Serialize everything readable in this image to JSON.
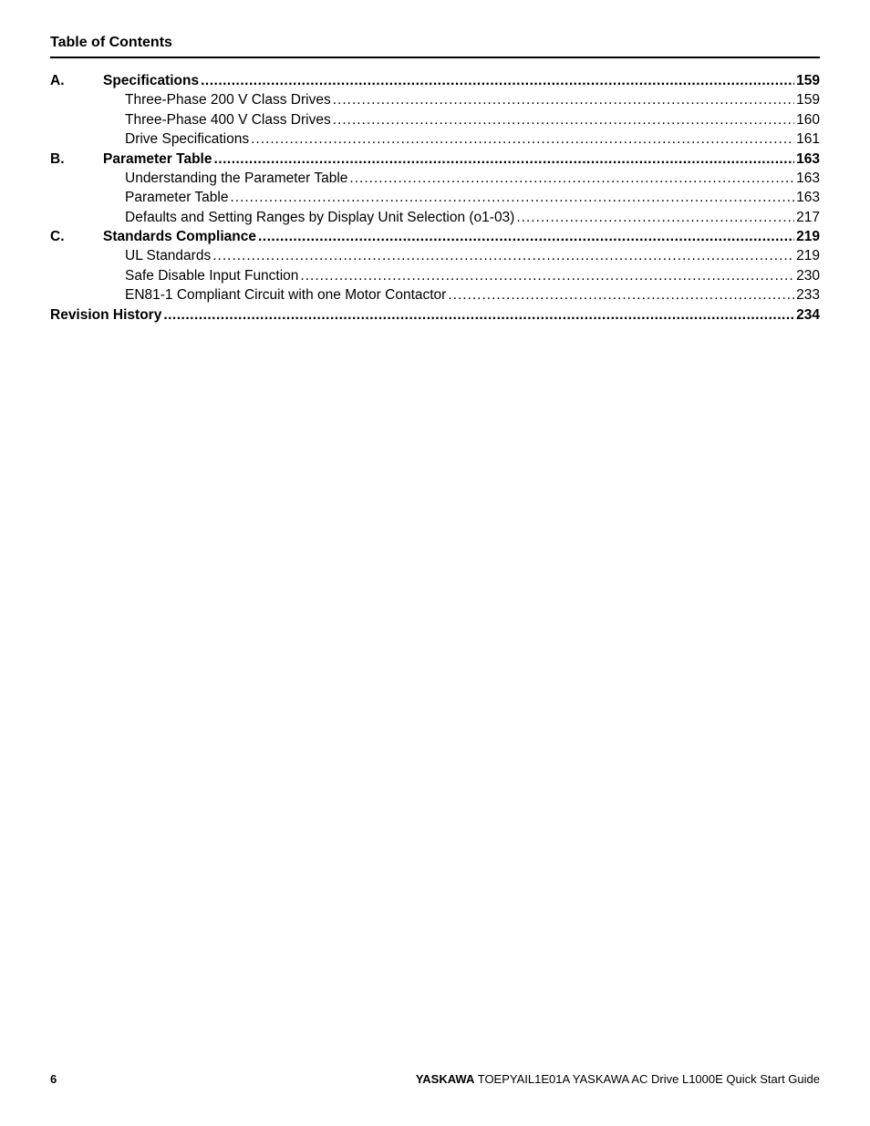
{
  "colors": {
    "text": "#000000",
    "background": "#ffffff",
    "rule": "#000000"
  },
  "typography": {
    "base_family": "Arial, Helvetica, sans-serif",
    "header_size_pt": 12,
    "body_size_pt": 11.5,
    "footer_size_pt": 9.5
  },
  "header": {
    "title": "Table of Contents"
  },
  "toc": {
    "sections": [
      {
        "letter": "A.",
        "title": "Specifications",
        "page": "159",
        "items": [
          {
            "label": "Three-Phase 200 V Class Drives",
            "page": "159"
          },
          {
            "label": "Three-Phase 400 V Class Drives",
            "page": "160"
          },
          {
            "label": "Drive Specifications",
            "page": "161"
          }
        ]
      },
      {
        "letter": "B.",
        "title": "Parameter Table",
        "page": "163",
        "items": [
          {
            "label": "Understanding the Parameter Table",
            "page": "163"
          },
          {
            "label": "Parameter Table",
            "page": "163"
          },
          {
            "label": "Defaults and Setting Ranges by Display Unit Selection (o1-03)",
            "page": "217"
          }
        ]
      },
      {
        "letter": "C.",
        "title": "Standards Compliance",
        "page": "219",
        "items": [
          {
            "label": "UL Standards",
            "page": "219"
          },
          {
            "label": "Safe Disable Input Function",
            "page": "230"
          },
          {
            "label": "EN81-1 Compliant Circuit with one Motor Contactor",
            "page": "233"
          }
        ]
      }
    ],
    "tail": {
      "title": "Revision History",
      "page": "234"
    }
  },
  "footer": {
    "pagenum": "6",
    "brand": "YASKAWA",
    "text": " TOEPYAIL1E01A YASKAWA AC Drive L1000E Quick Start Guide"
  }
}
